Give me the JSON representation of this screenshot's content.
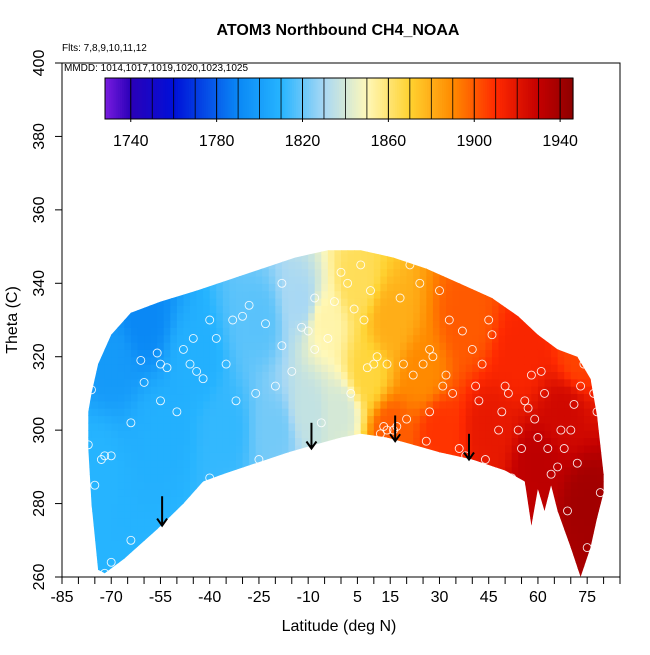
{
  "chart_data": {
    "type": "heatmap",
    "title": "ATOM3 Northbound CH4_NOAA",
    "notes": [
      "Flts: 7,8,9,10,11,12",
      "MMDD: 1014,1017,1019,1020,1023,1025"
    ],
    "xlabel": "Latitude (deg N)",
    "ylabel": "Theta (C)",
    "xlim": [
      -85,
      85
    ],
    "ylim": [
      260,
      400
    ],
    "x_ticks": [
      -85,
      -70,
      -55,
      -40,
      -25,
      -10,
      5,
      15,
      30,
      45,
      60,
      75
    ],
    "x_minor_ticks": [
      -80,
      -75,
      -65,
      -60,
      -50,
      -45,
      -35,
      -30,
      -20,
      -15,
      -5,
      0,
      10,
      20,
      25,
      35,
      40,
      50,
      55,
      65,
      70,
      80,
      85
    ],
    "y_ticks": [
      260,
      280,
      300,
      320,
      340,
      360,
      380,
      400
    ],
    "colorbar": {
      "ticks": [
        1740,
        1780,
        1820,
        1860,
        1900,
        1940
      ],
      "range": [
        1728,
        1946
      ],
      "stops": [
        {
          "v": 1728,
          "c": "#7a1ce0"
        },
        {
          "v": 1740,
          "c": "#2a00b8"
        },
        {
          "v": 1760,
          "c": "#0010d8"
        },
        {
          "v": 1790,
          "c": "#0a88f5"
        },
        {
          "v": 1810,
          "c": "#26b4ff"
        },
        {
          "v": 1830,
          "c": "#a8d8f4"
        },
        {
          "v": 1850,
          "c": "#fff8b8"
        },
        {
          "v": 1870,
          "c": "#ffd230"
        },
        {
          "v": 1890,
          "c": "#ff8a00"
        },
        {
          "v": 1910,
          "c": "#ff2a00"
        },
        {
          "v": 1930,
          "c": "#c40000"
        },
        {
          "v": 1946,
          "c": "#8e0000"
        }
      ]
    },
    "field_edge": {
      "top": [
        [
          -76,
          310
        ],
        [
          -74,
          318
        ],
        [
          -70,
          326
        ],
        [
          -64,
          332
        ],
        [
          -55,
          335
        ],
        [
          -44,
          338
        ],
        [
          -34,
          341
        ],
        [
          -24,
          344
        ],
        [
          -14,
          347
        ],
        [
          -4,
          349
        ],
        [
          6,
          349
        ],
        [
          16,
          347
        ],
        [
          26,
          344
        ],
        [
          36,
          340
        ],
        [
          46,
          336
        ],
        [
          54,
          331
        ],
        [
          60,
          326
        ],
        [
          66,
          322
        ],
        [
          72,
          320
        ],
        [
          76,
          314
        ],
        [
          78,
          304
        ],
        [
          79,
          296
        ],
        [
          80,
          288
        ],
        [
          80,
          283
        ]
      ],
      "bottom": [
        [
          80,
          283
        ],
        [
          78,
          276
        ],
        [
          76,
          268
        ],
        [
          73,
          260
        ],
        [
          70,
          268
        ],
        [
          66,
          278
        ],
        [
          64,
          285
        ],
        [
          62,
          278
        ],
        [
          60,
          284
        ],
        [
          58,
          274
        ],
        [
          56,
          286
        ],
        [
          50,
          289
        ],
        [
          40,
          292
        ],
        [
          30,
          294
        ],
        [
          22,
          296
        ],
        [
          14,
          298
        ],
        [
          6,
          299
        ],
        [
          0,
          298
        ],
        [
          -8,
          296
        ],
        [
          -16,
          294
        ],
        [
          -26,
          291
        ],
        [
          -36,
          288
        ],
        [
          -42,
          286
        ],
        [
          -48,
          280
        ],
        [
          -56,
          273
        ],
        [
          -66,
          265
        ],
        [
          -72,
          261
        ],
        [
          -74,
          262
        ],
        [
          -76,
          280
        ],
        [
          -77,
          295
        ],
        [
          -77,
          305
        ]
      ]
    },
    "field_samples": [
      {
        "x": -75,
        "y": 290,
        "v": 1810
      },
      {
        "x": -70,
        "y": 320,
        "v": 1798
      },
      {
        "x": -60,
        "y": 330,
        "v": 1790
      },
      {
        "x": -55,
        "y": 300,
        "v": 1808
      },
      {
        "x": -45,
        "y": 320,
        "v": 1808
      },
      {
        "x": -35,
        "y": 300,
        "v": 1812
      },
      {
        "x": -25,
        "y": 330,
        "v": 1818
      },
      {
        "x": -20,
        "y": 300,
        "v": 1822
      },
      {
        "x": -12,
        "y": 335,
        "v": 1830
      },
      {
        "x": -10,
        "y": 305,
        "v": 1836
      },
      {
        "x": -5,
        "y": 330,
        "v": 1852
      },
      {
        "x": 0,
        "y": 305,
        "v": 1840
      },
      {
        "x": 5,
        "y": 340,
        "v": 1864
      },
      {
        "x": 8,
        "y": 315,
        "v": 1868
      },
      {
        "x": 15,
        "y": 330,
        "v": 1880
      },
      {
        "x": 15,
        "y": 300,
        "v": 1900
      },
      {
        "x": 25,
        "y": 315,
        "v": 1890
      },
      {
        "x": 30,
        "y": 300,
        "v": 1908
      },
      {
        "x": 38,
        "y": 330,
        "v": 1900
      },
      {
        "x": 45,
        "y": 300,
        "v": 1918
      },
      {
        "x": 55,
        "y": 320,
        "v": 1912
      },
      {
        "x": 60,
        "y": 290,
        "v": 1932
      },
      {
        "x": 68,
        "y": 305,
        "v": 1926
      },
      {
        "x": 72,
        "y": 320,
        "v": 1905
      },
      {
        "x": 75,
        "y": 280,
        "v": 1940
      }
    ],
    "points": [
      [
        -77,
        296
      ],
      [
        -76,
        311
      ],
      [
        -75,
        285
      ],
      [
        -73,
        292
      ],
      [
        -72,
        293
      ],
      [
        -70,
        293
      ],
      [
        -72,
        261
      ],
      [
        -70,
        264
      ],
      [
        -64,
        270
      ],
      [
        -64,
        302
      ],
      [
        -61,
        319
      ],
      [
        -60,
        313
      ],
      [
        -56,
        321
      ],
      [
        -55,
        318
      ],
      [
        -55,
        308
      ],
      [
        -53,
        317
      ],
      [
        -48,
        322
      ],
      [
        -46,
        318
      ],
      [
        -45,
        325
      ],
      [
        -44,
        316
      ],
      [
        -42,
        314
      ],
      [
        -40,
        287
      ],
      [
        -40,
        330
      ],
      [
        -38,
        325
      ],
      [
        -35,
        318
      ],
      [
        -33,
        330
      ],
      [
        -30,
        331
      ],
      [
        -28,
        334
      ],
      [
        -26,
        310
      ],
      [
        -25,
        292
      ],
      [
        -23,
        329
      ],
      [
        -18,
        340
      ],
      [
        -18,
        323
      ],
      [
        -15,
        316
      ],
      [
        -12,
        328
      ],
      [
        -10,
        327
      ],
      [
        -8,
        322
      ],
      [
        -6,
        302
      ],
      [
        -4,
        325
      ],
      [
        -2,
        335
      ],
      [
        0,
        343
      ],
      [
        2,
        340
      ],
      [
        4,
        333
      ],
      [
        6,
        345
      ],
      [
        7,
        330
      ],
      [
        8,
        317
      ],
      [
        10,
        318
      ],
      [
        11,
        320
      ],
      [
        12,
        299
      ],
      [
        13,
        301
      ],
      [
        14,
        318
      ],
      [
        14,
        300
      ],
      [
        16,
        300
      ],
      [
        17,
        301
      ],
      [
        18,
        336
      ],
      [
        19,
        318
      ],
      [
        21,
        345
      ],
      [
        22,
        315
      ],
      [
        24,
        340
      ],
      [
        25,
        318
      ],
      [
        26,
        297
      ],
      [
        27,
        322
      ],
      [
        28,
        320
      ],
      [
        29,
        345
      ],
      [
        30,
        338
      ],
      [
        31,
        312
      ],
      [
        32,
        315
      ],
      [
        33,
        330
      ],
      [
        34,
        310
      ],
      [
        35,
        342
      ],
      [
        36,
        295
      ],
      [
        37,
        327
      ],
      [
        38,
        293
      ],
      [
        40,
        322
      ],
      [
        41,
        312
      ],
      [
        42,
        308
      ],
      [
        43,
        318
      ],
      [
        44,
        292
      ],
      [
        45,
        330
      ],
      [
        46,
        326
      ],
      [
        48,
        300
      ],
      [
        49,
        305
      ],
      [
        50,
        312
      ],
      [
        51,
        310
      ],
      [
        52,
        287
      ],
      [
        53,
        286
      ],
      [
        54,
        300
      ],
      [
        55,
        295
      ],
      [
        56,
        308
      ],
      [
        57,
        306
      ],
      [
        58,
        315
      ],
      [
        59,
        303
      ],
      [
        60,
        298
      ],
      [
        61,
        316
      ],
      [
        62,
        310
      ],
      [
        63,
        295
      ],
      [
        64,
        288
      ],
      [
        65,
        276
      ],
      [
        66,
        290
      ],
      [
        67,
        300
      ],
      [
        68,
        295
      ],
      [
        69,
        278
      ],
      [
        70,
        300
      ],
      [
        71,
        307
      ],
      [
        72,
        291
      ],
      [
        73,
        312
      ],
      [
        74,
        318
      ],
      [
        75,
        268
      ],
      [
        76,
        320
      ],
      [
        77,
        310
      ],
      [
        78,
        305
      ],
      [
        79,
        283
      ],
      [
        -50,
        305
      ],
      [
        -32,
        308
      ],
      [
        -20,
        312
      ],
      [
        -8,
        336
      ],
      [
        3,
        310
      ],
      [
        9,
        338
      ],
      [
        20,
        303
      ],
      [
        27,
        305
      ]
    ],
    "arrows": [
      {
        "x": -54.5,
        "y_top": 282,
        "y_bottom": 274
      },
      {
        "x": -9,
        "y_top": 302,
        "y_bottom": 295
      },
      {
        "x": 16.5,
        "y_top": 304,
        "y_bottom": 297
      },
      {
        "x": 39,
        "y_top": 299,
        "y_bottom": 292
      }
    ]
  }
}
